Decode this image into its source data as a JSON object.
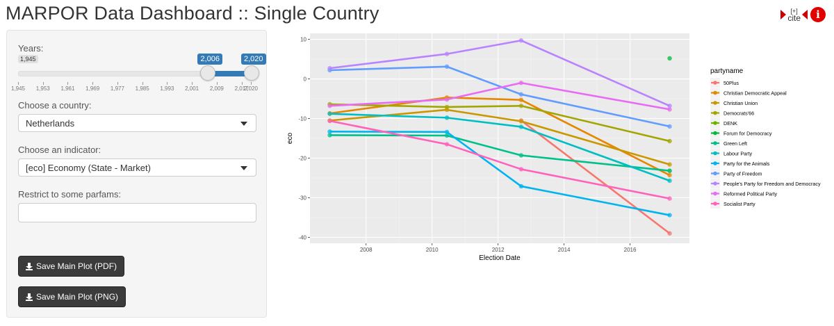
{
  "header": {
    "title": "MARPOR Data Dashboard :: Single Country",
    "cite_label": "cite",
    "cite_sup": "[+]",
    "info_label": "i"
  },
  "sidebar": {
    "years_label": "Years:",
    "slider": {
      "min": 1945,
      "max": 2020,
      "min_label": "1,945",
      "from": 2006,
      "to": 2020,
      "from_label": "2,006",
      "to_label": "2,020",
      "ticks": [
        "1,945",
        "1,953",
        "1,961",
        "1,969",
        "1,977",
        "1,985",
        "1,993",
        "2,001",
        "2,009",
        "2,017",
        "2,020"
      ],
      "tick_values": [
        1945,
        1953,
        1961,
        1969,
        1977,
        1985,
        1993,
        2001,
        2009,
        2017,
        2020
      ]
    },
    "country_label": "Choose a country:",
    "country_value": "Netherlands",
    "indicator_label": "Choose an indicator:",
    "indicator_value": "[eco] Economy (State - Market)",
    "parfams_label": "Restrict to some parfams:",
    "parfams_value": "",
    "save_pdf_label": "Save Main Plot (PDF)",
    "save_png_label": "Save Main Plot (PNG)"
  },
  "chart_data": {
    "type": "line",
    "xlabel": "Election Date",
    "ylabel": "eco",
    "xlim": [
      2006.3,
      2017.8
    ],
    "ylim": [
      -41.5,
      11.5
    ],
    "xticks": [
      2008,
      2010,
      2012,
      2014,
      2016
    ],
    "yticks": [
      10,
      0,
      -10,
      -20,
      -30,
      -40
    ],
    "legend_title": "partyname",
    "legend_position": "right",
    "grid": true,
    "elections": [
      2006.9,
      2010.45,
      2012.7,
      2017.2
    ],
    "series": [
      {
        "name": "50Plus",
        "color": "#F8766D",
        "x": [
          2012.7,
          2017.2
        ],
        "y": [
          -10.5,
          -39
        ]
      },
      {
        "name": "Christian Democratic Appeal",
        "color": "#E58700",
        "x": [
          2006.9,
          2010.45,
          2012.7,
          2017.2
        ],
        "y": [
          -8.7,
          -4.7,
          -5.3,
          -24.3
        ]
      },
      {
        "name": "Christian Union",
        "color": "#C99800",
        "x": [
          2006.9,
          2010.45,
          2012.7,
          2017.2
        ],
        "y": [
          -10.5,
          -7.8,
          -10.7,
          -21.6
        ]
      },
      {
        "name": "Democrats'66",
        "color": "#A3A500",
        "x": [
          2006.9,
          2010.45,
          2012.7,
          2017.2
        ],
        "y": [
          -6.4,
          -7.1,
          -6.8,
          -15.7
        ]
      },
      {
        "name": "DENK",
        "color": "#6BB100",
        "x": [
          2017.2
        ],
        "y": [
          -23.2
        ]
      },
      {
        "name": "Forum for Democracy",
        "color": "#00BA38",
        "x": [
          2017.2
        ],
        "y": [
          5.2
        ]
      },
      {
        "name": "Green Left",
        "color": "#00C08B",
        "x": [
          2006.9,
          2010.45,
          2012.7,
          2017.2
        ],
        "y": [
          -14.2,
          -14.3,
          -19.3,
          -23.2
        ]
      },
      {
        "name": "Labour Party",
        "color": "#00BFC4",
        "x": [
          2006.9,
          2010.45,
          2012.7,
          2017.2
        ],
        "y": [
          -8.8,
          -9.8,
          -12.1,
          -25.7
        ]
      },
      {
        "name": "Party for the Animals",
        "color": "#00B4F0",
        "x": [
          2006.9,
          2010.45,
          2012.7,
          2017.2
        ],
        "y": [
          -13.3,
          -13.4,
          -27.1,
          -34.4
        ]
      },
      {
        "name": "Party of Freedom",
        "color": "#619CFF",
        "x": [
          2006.9,
          2010.45,
          2012.7,
          2017.2
        ],
        "y": [
          2.2,
          3.1,
          -3.9,
          -12
        ]
      },
      {
        "name": "People's Party for Freedom and Democracy",
        "color": "#B983FF",
        "x": [
          2006.9,
          2010.45,
          2012.7,
          2017.2
        ],
        "y": [
          2.7,
          6.3,
          9.7,
          -6.8
        ]
      },
      {
        "name": "Reformed Political Party",
        "color": "#E76BF3",
        "x": [
          2006.9,
          2010.45,
          2012.7,
          2017.2
        ],
        "y": [
          -6.8,
          -5.2,
          -1,
          -7.7
        ]
      },
      {
        "name": "Socialist Party",
        "color": "#FF62BC",
        "x": [
          2006.9,
          2010.45,
          2012.7,
          2017.2
        ],
        "y": [
          -10.6,
          -16.5,
          -22.8,
          -30.2
        ]
      }
    ]
  }
}
